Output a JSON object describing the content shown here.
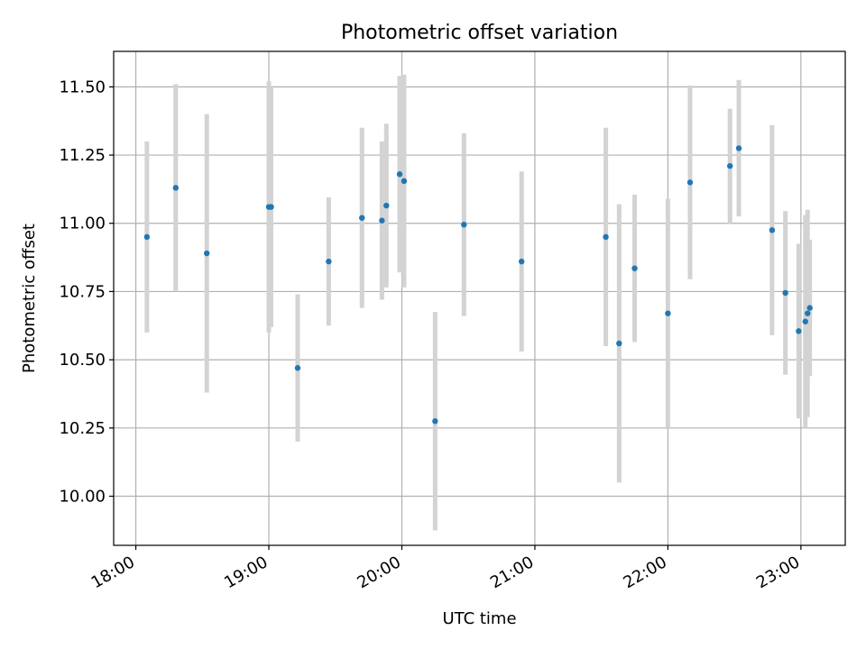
{
  "chart_data": {
    "type": "scatter",
    "title": "Photometric offset variation",
    "xlabel": "UTC time",
    "ylabel": "Photometric offset",
    "x_tick_labels": [
      "18:00",
      "19:00",
      "20:00",
      "21:00",
      "22:00",
      "23:00"
    ],
    "x_ticks": [
      "18:00",
      "19:00",
      "20:00",
      "21:00",
      "22:00",
      "23:00"
    ],
    "y_ticks": [
      10.0,
      10.25,
      10.5,
      10.75,
      11.0,
      11.25,
      11.5
    ],
    "y_tick_labels": [
      "10.00",
      "10.25",
      "10.50",
      "10.75",
      "11.00",
      "11.25",
      "11.50"
    ],
    "xlim": [
      "17:50",
      "23:20"
    ],
    "ylim": [
      9.82,
      11.63
    ],
    "grid": true,
    "legend": "none",
    "colors": {
      "marker": "#1f77b4",
      "errorbar": "#d3d3d3",
      "grid": "#b0b0b0"
    },
    "points": [
      {
        "x": "18:05",
        "y": 10.95,
        "yerr": 0.35
      },
      {
        "x": "18:18",
        "y": 11.13,
        "yerr": 0.38
      },
      {
        "x": "18:32",
        "y": 10.89,
        "yerr": 0.51
      },
      {
        "x": "19:00",
        "y": 11.06,
        "yerr": 0.46
      },
      {
        "x": "19:01",
        "y": 11.06,
        "yerr": 0.44
      },
      {
        "x": "19:13",
        "y": 10.47,
        "yerr": 0.27
      },
      {
        "x": "19:27",
        "y": 10.86,
        "yerr": 0.235
      },
      {
        "x": "19:42",
        "y": 11.02,
        "yerr": 0.33
      },
      {
        "x": "19:51",
        "y": 11.01,
        "yerr": 0.29
      },
      {
        "x": "19:53",
        "y": 11.065,
        "yerr": 0.3
      },
      {
        "x": "19:59",
        "y": 11.18,
        "yerr": 0.36
      },
      {
        "x": "20:01",
        "y": 11.155,
        "yerr": 0.39
      },
      {
        "x": "20:15",
        "y": 10.275,
        "yerr": 0.4
      },
      {
        "x": "20:28",
        "y": 10.995,
        "yerr": 0.335
      },
      {
        "x": "20:54",
        "y": 10.86,
        "yerr": 0.33
      },
      {
        "x": "21:32",
        "y": 10.95,
        "yerr": 0.4
      },
      {
        "x": "21:38",
        "y": 10.56,
        "yerr": 0.51
      },
      {
        "x": "21:45",
        "y": 10.835,
        "yerr": 0.27
      },
      {
        "x": "22:00",
        "y": 10.67,
        "yerr": 0.42
      },
      {
        "x": "22:10",
        "y": 11.15,
        "yerr": 0.355
      },
      {
        "x": "22:28",
        "y": 11.21,
        "yerr": 0.21
      },
      {
        "x": "22:32",
        "y": 11.275,
        "yerr": 0.25
      },
      {
        "x": "22:47",
        "y": 10.975,
        "yerr": 0.385
      },
      {
        "x": "22:53",
        "y": 10.745,
        "yerr": 0.3
      },
      {
        "x": "22:59",
        "y": 10.605,
        "yerr": 0.32
      },
      {
        "x": "23:02",
        "y": 10.64,
        "yerr": 0.39
      },
      {
        "x": "23:03",
        "y": 10.67,
        "yerr": 0.38
      },
      {
        "x": "23:04",
        "y": 10.69,
        "yerr": 0.25
      }
    ]
  }
}
